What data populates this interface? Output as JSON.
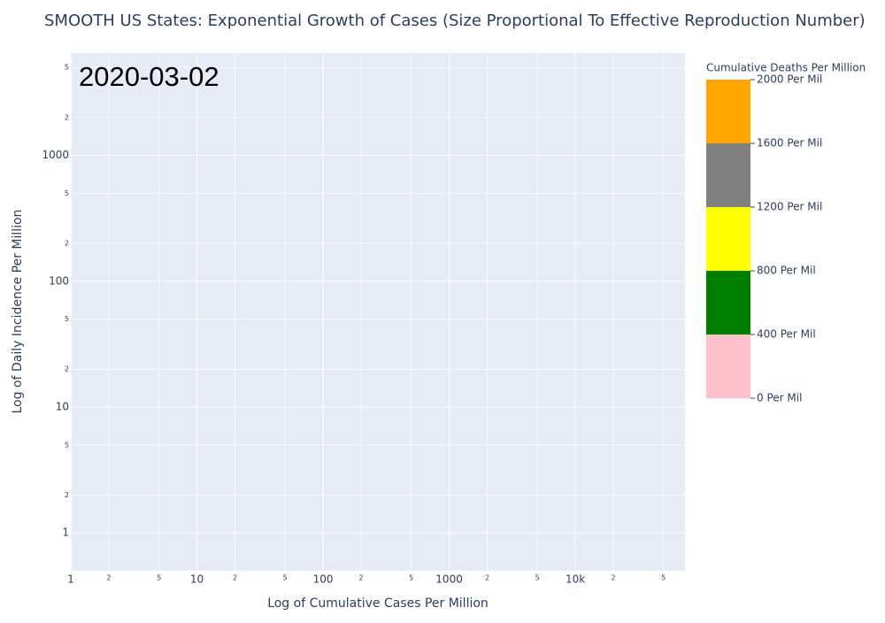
{
  "chart_data": {
    "type": "scatter",
    "title": "SMOOTH US States: Exponential Growth of Cases (Size Proportional To Effective Reproduction Number)",
    "annotation": "2020-03-02",
    "x_label": "Log of Cumulative Cases Per Million",
    "y_label": "Log of Daily Incidence Per Million",
    "log_x": true,
    "log_y": true,
    "grid": true,
    "background": "#e5ecf6",
    "xlim": [
      1,
      74000
    ],
    "ylim": [
      0.5,
      6500
    ],
    "xticks": [
      1,
      2,
      5,
      10,
      {
        "value": 20,
        "label": "2"
      },
      {
        "value": 50,
        "label": "5"
      },
      100,
      {
        "value": 200,
        "label": "2"
      },
      {
        "value": 500,
        "label": "5"
      },
      1000,
      {
        "value": 2000,
        "label": "2"
      },
      {
        "value": 5000,
        "label": "5"
      },
      {
        "value": 10000,
        "label": "10k"
      },
      {
        "value": 20000,
        "label": "2"
      },
      {
        "value": 50000,
        "label": "5"
      }
    ],
    "yticks": [
      1,
      2,
      5,
      10,
      {
        "value": 20,
        "label": "2"
      },
      {
        "value": 50,
        "label": "5"
      },
      100,
      {
        "value": 200,
        "label": "2"
      },
      {
        "value": 500,
        "label": "5"
      },
      1000,
      {
        "value": 2000,
        "label": "2"
      },
      {
        "value": 5000,
        "label": "5"
      }
    ],
    "series": [],
    "colorbar": {
      "title": "Cumulative Deaths Per Million",
      "lim": [
        0,
        2000
      ],
      "ticks": [
        {
          "value": 0,
          "label": "0 Per Mil"
        },
        {
          "value": 400,
          "label": "400 Per Mil"
        },
        {
          "value": 800,
          "label": "800 Per Mil"
        },
        {
          "value": 1200,
          "label": "1200 Per Mil"
        },
        {
          "value": 1600,
          "label": "1600 Per Mil"
        },
        {
          "value": 2000,
          "label": "2000 Per Mil"
        }
      ],
      "bands": [
        {
          "from": 0,
          "to": 400,
          "color": "#ffc0cb"
        },
        {
          "from": 400,
          "to": 800,
          "color": "#008000"
        },
        {
          "from": 800,
          "to": 1200,
          "color": "#ffff00"
        },
        {
          "from": 1200,
          "to": 1600,
          "color": "#808080"
        },
        {
          "from": 1600,
          "to": 2000,
          "color": "#ffa500"
        }
      ]
    }
  }
}
